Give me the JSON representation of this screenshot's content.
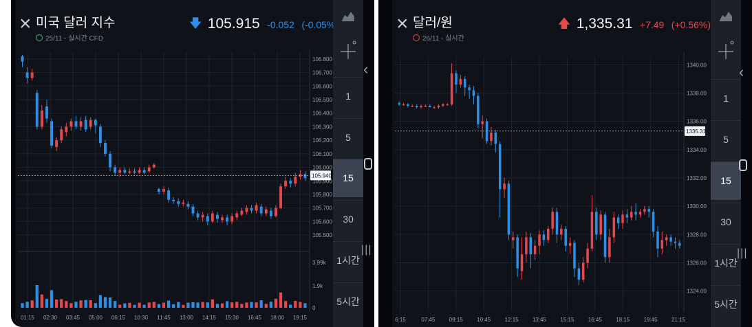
{
  "left": {
    "title": "미국 달러 지수",
    "meta": "25/11 - 실시간 CFD",
    "direction": "down",
    "price": "105.915",
    "change": "-0.052",
    "change_pct": "(-0.05%)",
    "current_label": "105.940",
    "timeframes": [
      "1",
      "5",
      "15",
      "30",
      "1시간",
      "5시간"
    ],
    "active_timeframe": "15"
  },
  "right": {
    "title": "달러/원",
    "meta": "26/11 - 실시간",
    "direction": "up",
    "price": "1,335.31",
    "change": "+7.49",
    "change_pct": "(+0.56%)",
    "current_label": "1335.31",
    "timeframes": [
      "1",
      "5",
      "15",
      "30",
      "1시간",
      "5시간"
    ],
    "active_timeframe": "15"
  },
  "colors": {
    "up": "#e5484d",
    "down": "#2e8fe6",
    "background": "#0f1219",
    "grid": "#1d2532"
  },
  "icons": [
    "close-icon",
    "chart-type-icon",
    "crosshair-icon",
    "chevron-left-icon",
    "home-icon",
    "menu-icon"
  ],
  "chart_data": [
    {
      "type": "candlestick",
      "title": "미국 달러 지수",
      "x_ticks": [
        "01:15",
        "02:30",
        "03:45",
        "05:00",
        "06:15",
        "10:30",
        "11:45",
        "13:00",
        "14:15",
        "15:30",
        "16:45",
        "18:00",
        "19:15"
      ],
      "y_ticks": [
        "106.800",
        "106.700",
        "106.600",
        "106.500",
        "106.400",
        "106.300",
        "106.200",
        "106.100",
        "106.000",
        "105.900",
        "105.800",
        "105.700",
        "105.600",
        "105.500"
      ],
      "ylim": [
        105.45,
        106.85
      ],
      "current_value": 105.94,
      "candles": [
        [
          106.82,
          106.78,
          106.83,
          106.74
        ],
        [
          106.7,
          106.66,
          106.74,
          106.62
        ],
        [
          106.66,
          106.7,
          106.73,
          106.64
        ],
        [
          106.55,
          106.3,
          106.57,
          106.28
        ],
        [
          106.3,
          106.42,
          106.46,
          106.28
        ],
        [
          106.45,
          106.36,
          106.5,
          106.33
        ],
        [
          106.34,
          106.16,
          106.36,
          106.14
        ],
        [
          106.15,
          106.2,
          106.22,
          106.12
        ],
        [
          106.2,
          106.28,
          106.3,
          106.18
        ],
        [
          106.26,
          106.3,
          106.33,
          106.23
        ],
        [
          106.3,
          106.34,
          106.36,
          106.27
        ],
        [
          106.34,
          106.3,
          106.38,
          106.28
        ],
        [
          106.3,
          106.34,
          106.37,
          106.27
        ],
        [
          106.35,
          106.28,
          106.38,
          106.26
        ],
        [
          106.3,
          106.35,
          106.37,
          106.28
        ],
        [
          106.35,
          106.31,
          106.36,
          106.25
        ],
        [
          106.3,
          106.18,
          106.32,
          106.15
        ],
        [
          106.18,
          106.1,
          106.2,
          106.08
        ],
        [
          106.1,
          106.0,
          106.12,
          105.97
        ],
        [
          106.0,
          105.96,
          106.02,
          105.94
        ],
        [
          105.96,
          105.98,
          106.0,
          105.93
        ],
        [
          105.98,
          105.96,
          106.0,
          105.95
        ],
        [
          105.96,
          105.97,
          105.99,
          105.95
        ],
        [
          105.97,
          105.96,
          105.99,
          105.95
        ],
        [
          105.96,
          105.98,
          106.0,
          105.95
        ],
        [
          105.98,
          105.96,
          106.0,
          105.95
        ],
        [
          105.97,
          106.0,
          106.02,
          105.96
        ],
        [
          106.0,
          106.02,
          106.03,
          105.99
        ],
        [
          105.84,
          105.82,
          105.85,
          105.8
        ],
        [
          105.82,
          105.84,
          105.86,
          105.8
        ],
        [
          105.83,
          105.76,
          105.85,
          105.74
        ],
        [
          105.76,
          105.75,
          105.78,
          105.73
        ],
        [
          105.75,
          105.73,
          105.77,
          105.71
        ],
        [
          105.73,
          105.74,
          105.76,
          105.71
        ],
        [
          105.73,
          105.71,
          105.75,
          105.69
        ],
        [
          105.71,
          105.66,
          105.73,
          105.64
        ],
        [
          105.66,
          105.63,
          105.68,
          105.61
        ],
        [
          105.63,
          105.65,
          105.67,
          105.6
        ],
        [
          105.64,
          105.6,
          105.66,
          105.57
        ],
        [
          105.6,
          105.66,
          105.68,
          105.59
        ],
        [
          105.65,
          105.62,
          105.67,
          105.59
        ],
        [
          105.61,
          105.63,
          105.65,
          105.59
        ],
        [
          105.63,
          105.6,
          105.65,
          105.57
        ],
        [
          105.6,
          105.64,
          105.66,
          105.58
        ],
        [
          105.63,
          105.66,
          105.68,
          105.61
        ],
        [
          105.65,
          105.68,
          105.7,
          105.64
        ],
        [
          105.67,
          105.7,
          105.72,
          105.65
        ],
        [
          105.7,
          105.68,
          105.72,
          105.66
        ],
        [
          105.68,
          105.72,
          105.74,
          105.66
        ],
        [
          105.71,
          105.66,
          105.73,
          105.64
        ],
        [
          105.66,
          105.69,
          105.71,
          105.64
        ],
        [
          105.68,
          105.64,
          105.7,
          105.62
        ],
        [
          105.64,
          105.7,
          105.72,
          105.63
        ],
        [
          105.7,
          105.86,
          105.88,
          105.69
        ],
        [
          105.86,
          105.9,
          105.93,
          105.84
        ],
        [
          105.9,
          105.88,
          105.92,
          105.85
        ],
        [
          105.88,
          105.93,
          105.96,
          105.86
        ],
        [
          105.93,
          105.95,
          105.98,
          105.91
        ],
        [
          105.95,
          105.92,
          105.97,
          105.9
        ]
      ],
      "volume_ticks": [
        "3.99k",
        "1.9k",
        "0"
      ]
    },
    {
      "type": "candlestick",
      "title": "달러/원",
      "x_ticks": [
        "6:15",
        "07:45",
        "09:15",
        "10:45",
        "12:15",
        "13:45",
        "15:15",
        "16:45",
        "18:15",
        "19:45",
        "21:15"
      ],
      "y_ticks": [
        "1340.00",
        "1338.00",
        "1336.00",
        "1334.00",
        "1332.00",
        "1330.00",
        "1328.00",
        "1326.00",
        "1324.00"
      ],
      "ylim": [
        1323.3,
        1340.6
      ],
      "current_value": 1335.31,
      "candles": [
        [
          1337.3,
          1337.2,
          1337.4,
          1337.1
        ],
        [
          1337.2,
          1337.2,
          1337.3,
          1337.1
        ],
        [
          1337.2,
          1337.1,
          1337.3,
          1337.0
        ],
        [
          1337.1,
          1337.1,
          1337.2,
          1337.0
        ],
        [
          1337.1,
          1337.0,
          1337.2,
          1336.9
        ],
        [
          1337.0,
          1337.1,
          1337.2,
          1336.9
        ],
        [
          1337.1,
          1337.1,
          1337.2,
          1337.0
        ],
        [
          1337.1,
          1337.0,
          1337.2,
          1337.0
        ],
        [
          1337.0,
          1337.0,
          1337.1,
          1336.9
        ],
        [
          1337.0,
          1337.1,
          1337.2,
          1336.9
        ],
        [
          1337.1,
          1337.2,
          1337.3,
          1337.0
        ],
        [
          1337.2,
          1337.2,
          1337.3,
          1337.1
        ],
        [
          1337.2,
          1339.4,
          1340.1,
          1337.1
        ],
        [
          1339.4,
          1338.6,
          1339.6,
          1338.0
        ],
        [
          1338.6,
          1339.0,
          1339.3,
          1338.4
        ],
        [
          1339.0,
          1338.4,
          1339.2,
          1337.8
        ],
        [
          1338.4,
          1338.2,
          1338.6,
          1337.6
        ],
        [
          1338.2,
          1337.8,
          1338.5,
          1337.2
        ],
        [
          1337.8,
          1335.8,
          1338.0,
          1335.5
        ],
        [
          1335.8,
          1336.0,
          1336.4,
          1334.8
        ],
        [
          1336.0,
          1334.6,
          1336.2,
          1334.4
        ],
        [
          1334.6,
          1335.2,
          1335.6,
          1334.3
        ],
        [
          1335.2,
          1334.4,
          1335.4,
          1333.8
        ],
        [
          1334.4,
          1331.2,
          1334.6,
          1329.2
        ],
        [
          1331.2,
          1331.6,
          1332.0,
          1330.6
        ],
        [
          1331.6,
          1328.0,
          1331.8,
          1327.6
        ],
        [
          1327.6,
          1327.8,
          1328.2,
          1327.0
        ],
        [
          1327.8,
          1325.6,
          1328.0,
          1325.0
        ],
        [
          1325.4,
          1326.6,
          1327.8,
          1324.8
        ],
        [
          1326.6,
          1327.8,
          1328.2,
          1326.0
        ],
        [
          1327.8,
          1326.6,
          1328.1,
          1325.6
        ],
        [
          1326.6,
          1327.2,
          1327.6,
          1326.2
        ],
        [
          1327.2,
          1328.0,
          1328.3,
          1326.6
        ],
        [
          1328.0,
          1327.6,
          1328.3,
          1327.2
        ],
        [
          1327.6,
          1328.4,
          1328.6,
          1327.4
        ],
        [
          1328.4,
          1329.6,
          1329.9,
          1328.0
        ],
        [
          1329.6,
          1328.0,
          1329.9,
          1327.4
        ],
        [
          1328.0,
          1328.4,
          1328.7,
          1327.6
        ],
        [
          1328.4,
          1327.2,
          1328.6,
          1326.8
        ],
        [
          1327.2,
          1327.4,
          1327.8,
          1326.6
        ],
        [
          1327.4,
          1325.6,
          1327.6,
          1325.0
        ],
        [
          1325.6,
          1324.8,
          1326.0,
          1324.4
        ],
        [
          1324.8,
          1326.0,
          1326.4,
          1324.6
        ],
        [
          1326.0,
          1327.0,
          1327.4,
          1325.6
        ],
        [
          1327.0,
          1329.6,
          1330.8,
          1326.8
        ],
        [
          1329.6,
          1328.0,
          1329.9,
          1327.6
        ],
        [
          1328.0,
          1329.4,
          1329.7,
          1327.6
        ],
        [
          1329.4,
          1326.4,
          1329.6,
          1326.0
        ],
        [
          1326.4,
          1327.8,
          1328.4,
          1326.0
        ],
        [
          1327.8,
          1329.2,
          1329.6,
          1327.4
        ],
        [
          1329.2,
          1328.8,
          1329.4,
          1328.4
        ],
        [
          1328.8,
          1329.4,
          1329.7,
          1328.4
        ],
        [
          1329.4,
          1329.2,
          1329.8,
          1328.8
        ],
        [
          1329.2,
          1329.6,
          1330.0,
          1329.0
        ],
        [
          1329.6,
          1329.4,
          1330.2,
          1329.0
        ],
        [
          1329.4,
          1329.6,
          1329.8,
          1329.2
        ],
        [
          1329.6,
          1329.8,
          1330.0,
          1329.4
        ],
        [
          1329.8,
          1329.6,
          1330.0,
          1329.2
        ],
        [
          1329.6,
          1328.2,
          1329.8,
          1327.8
        ],
        [
          1328.2,
          1327.0,
          1328.6,
          1326.4
        ],
        [
          1327.0,
          1327.6,
          1328.2,
          1326.6
        ],
        [
          1327.6,
          1327.8,
          1328.0,
          1327.2
        ],
        [
          1327.8,
          1327.5,
          1328.0,
          1327.2
        ],
        [
          1327.5,
          1327.4,
          1327.8,
          1327.0
        ],
        [
          1327.4,
          1327.2,
          1327.6,
          1327.0
        ]
      ]
    }
  ]
}
